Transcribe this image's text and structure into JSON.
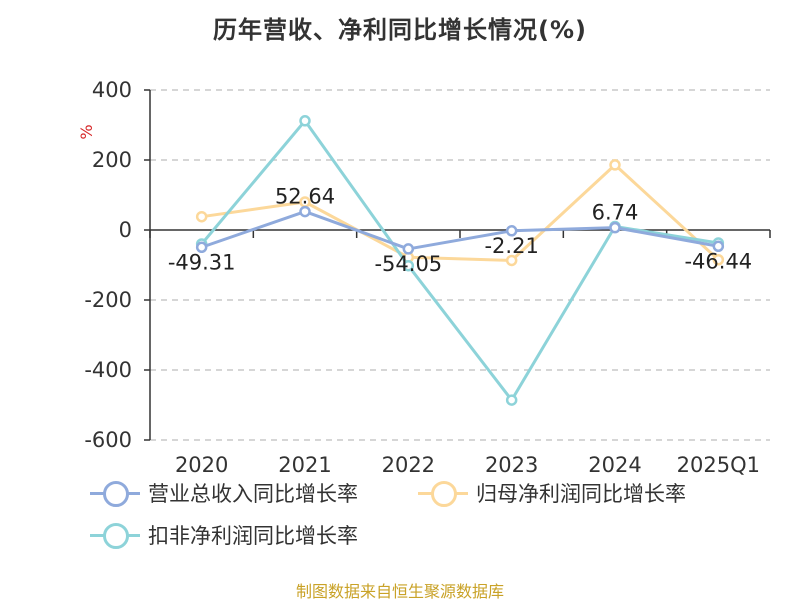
{
  "title": "历年营收、净利同比增长情况(%)",
  "source": "制图数据来自恒生聚源数据库",
  "chart_data": {
    "type": "line",
    "categories": [
      "2020",
      "2021",
      "2022",
      "2023",
      "2024",
      "2025Q1"
    ],
    "ylabel": "%",
    "ylim": [
      -600,
      400
    ],
    "yticks": [
      "400",
      "200",
      "0",
      "-200",
      "-400",
      "-600"
    ],
    "grid": true,
    "legend_position": "bottom",
    "series": [
      {
        "name": "营业总收入同比增长率",
        "color": "#8faadc",
        "values": [
          -49.31,
          52.64,
          -54.05,
          -2.21,
          6.74,
          -46.44
        ],
        "labels": [
          "-49.31",
          "52.64",
          "-54.05",
          "-2.21",
          "6.74",
          "-46.44"
        ]
      },
      {
        "name": "归母净利润同比增长率",
        "color": "#fcd89a",
        "values": [
          38,
          80,
          -78,
          -87,
          186,
          -85
        ]
      },
      {
        "name": "扣非净利润同比增长率",
        "color": "#8dd3d9",
        "values": [
          -40,
          312,
          -102,
          -486,
          10,
          -37
        ]
      }
    ]
  }
}
